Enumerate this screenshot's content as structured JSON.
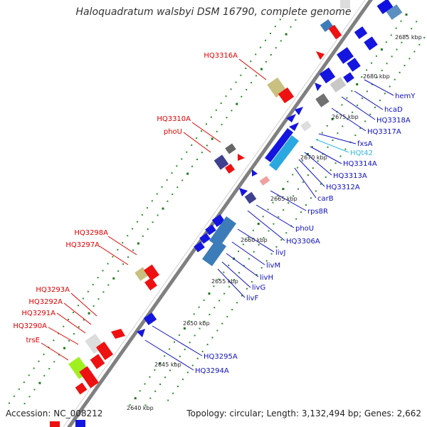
{
  "header": {
    "title": "Haloquadratum walsbyi DSM 16790, complete genome"
  },
  "footer": {
    "accession": "Accession: NC_008212",
    "topology": "Topology: circular; Length: 3,132,494 bp; Genes: 2,662"
  },
  "colors": {
    "backbone": "#808080",
    "left_labels": "#e00000",
    "right_labels": "#1010c0",
    "highlight_label": "#30b8e8",
    "kbp_label": "#222222",
    "minor_tick": "#2e8b2e"
  },
  "ticks": [
    "2640 kbp",
    "2645 kbp",
    "2650 kbp",
    "2655 kbp",
    "2660 kbp",
    "2665 kbp",
    "2670 kbp",
    "2675 kbp",
    "2680 kbp",
    "2685 kbp"
  ],
  "genes_left": [
    {
      "label": "HQ3316A"
    },
    {
      "label": "HQ3310A"
    },
    {
      "label": "phoU"
    },
    {
      "label": "HQ3298A"
    },
    {
      "label": "HQ3297A"
    },
    {
      "label": "HQ3293A"
    },
    {
      "label": "HQ3292A"
    },
    {
      "label": "HQ3291A"
    },
    {
      "label": "HQ3290A"
    },
    {
      "label": "trsE"
    }
  ],
  "genes_right": [
    {
      "label": "hemY"
    },
    {
      "label": "hcaD"
    },
    {
      "label": "HQ3318A"
    },
    {
      "label": "HQ3317A"
    },
    {
      "label": "fxsA"
    },
    {
      "label": "HQt42"
    },
    {
      "label": "HQ3314A"
    },
    {
      "label": "HQ3313A"
    },
    {
      "label": "HQ3312A"
    },
    {
      "label": "carB"
    },
    {
      "label": "rps8R"
    },
    {
      "label": "phoU"
    },
    {
      "label": "HQ3306A"
    },
    {
      "label": "livJ"
    },
    {
      "label": "livM"
    },
    {
      "label": "livH"
    },
    {
      "label": "livG"
    },
    {
      "label": "livF"
    },
    {
      "label": "HQ3295A"
    },
    {
      "label": "HQ3294A"
    }
  ]
}
